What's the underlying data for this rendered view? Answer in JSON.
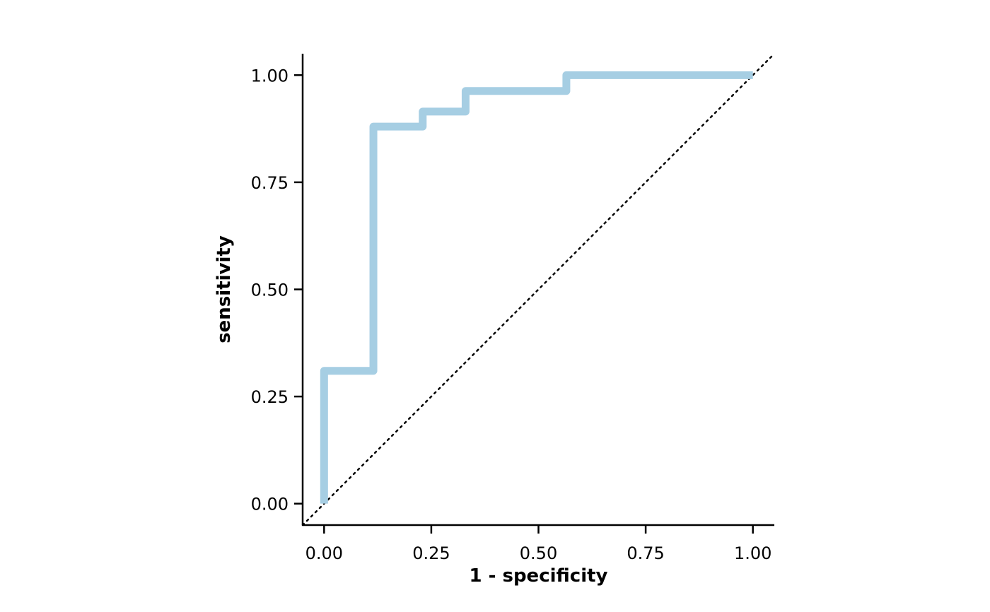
{
  "chart_data": {
    "type": "line",
    "title": "",
    "xlabel": "1 - specificity",
    "ylabel": "sensitivity",
    "xlim": [
      -0.05,
      1.05
    ],
    "ylim": [
      -0.05,
      1.05
    ],
    "x_ticks": [
      0,
      0.25,
      0.5,
      0.75,
      1
    ],
    "x_tick_labels": [
      "0.00",
      "0.25",
      "0.50",
      "0.75",
      "1.00"
    ],
    "y_ticks": [
      0,
      0.25,
      0.5,
      0.75,
      1
    ],
    "y_tick_labels": [
      "0.00",
      "0.25",
      "0.50",
      "0.75",
      "1.00"
    ],
    "grid": false,
    "legend": "none",
    "series": [
      {
        "style": "step",
        "color": "#a6cee3",
        "x": [
          0,
          0,
          0.115,
          0.115,
          0.23,
          0.23,
          0.33,
          0.33,
          0.565,
          0.565,
          1.0
        ],
        "y": [
          0,
          0.31,
          0.31,
          0.88,
          0.88,
          0.915,
          0.915,
          0.963,
          0.963,
          1.0,
          1.0
        ]
      }
    ],
    "reference_line": {
      "style": "dotted",
      "color": "#000000",
      "x": [
        -0.05,
        1.05
      ],
      "y": [
        -0.05,
        1.05
      ]
    }
  }
}
